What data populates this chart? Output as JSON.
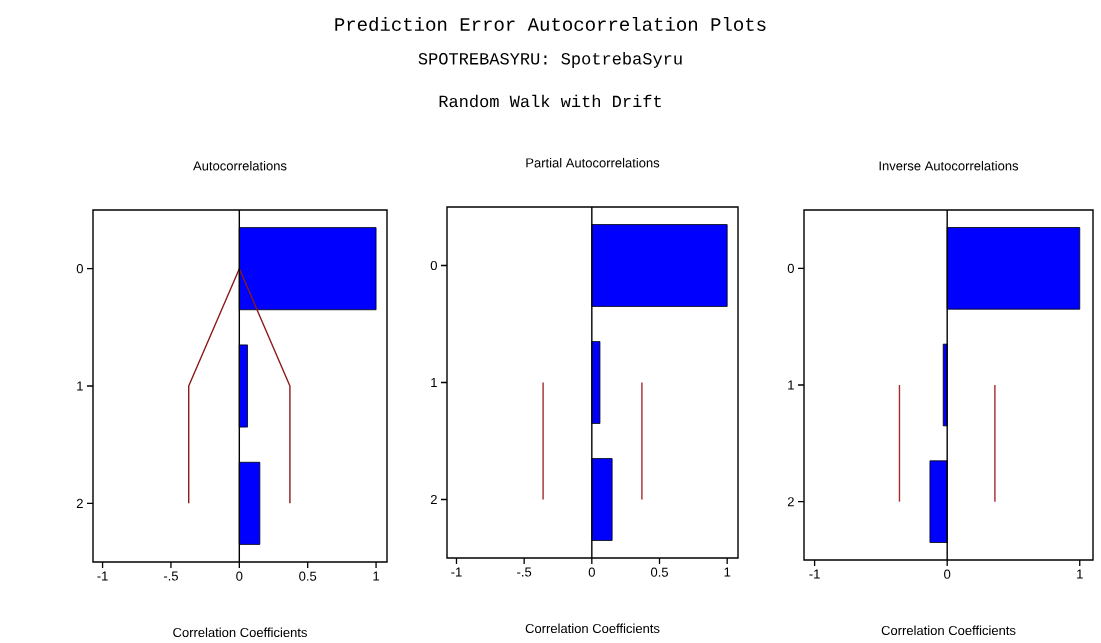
{
  "chart_data": [
    {
      "type": "other",
      "title": "Prediction Error Autocorrelation Plots",
      "subtitle": "SPOTREBASYRU: SpotrebaSyru",
      "annotations": [
        "Random Walk with Drift"
      ]
    },
    {
      "type": "bar",
      "orientation": "horizontal",
      "title": "Autocorrelations",
      "xlabel": "Correlation Coefficients",
      "categories": [
        "0",
        "1",
        "2"
      ],
      "xlim": [
        -1.07,
        1.08
      ],
      "xticks": [
        -1,
        {
          "value": -0.5,
          "label": "-.5"
        },
        0,
        0.5,
        1
      ],
      "series": [
        {
          "type": "bar",
          "color": "#0000ff",
          "values": [
            1.0,
            0.06,
            0.15
          ]
        },
        {
          "type": "line",
          "color": "#8b1a1a",
          "values": [
            0,
            -0.37,
            -0.37
          ]
        },
        {
          "type": "line",
          "color": "#8b1a1a",
          "values": [
            0,
            0.37,
            0.37
          ]
        }
      ],
      "ref_lines": [
        {
          "axis": "x",
          "value": 0,
          "color": "#000000"
        }
      ]
    },
    {
      "type": "bar",
      "orientation": "horizontal",
      "title": "Partial Autocorrelations",
      "xlabel": "Correlation Coefficients",
      "categories": [
        "0",
        "1",
        "2"
      ],
      "xlim": [
        -1.07,
        1.08
      ],
      "xticks": [
        -1,
        {
          "value": -0.5,
          "label": "-.5"
        },
        0,
        0.5,
        1
      ],
      "series": [
        {
          "type": "bar",
          "color": "#0000ff",
          "values": [
            1.0,
            0.06,
            0.15
          ]
        },
        {
          "type": "line",
          "color": "#a52a2a",
          "values": [
            null,
            -0.36,
            -0.36
          ]
        },
        {
          "type": "line",
          "color": "#a52a2a",
          "values": [
            null,
            0.37,
            0.37
          ]
        }
      ],
      "ref_lines": [
        {
          "axis": "x",
          "value": 0,
          "color": "#000000"
        }
      ]
    },
    {
      "type": "bar",
      "orientation": "horizontal",
      "title": "Inverse Autocorrelations",
      "xlabel": "Correlation Coefficients",
      "categories": [
        "0",
        "1",
        "2"
      ],
      "xlim": [
        -1.08,
        1.1
      ],
      "xticks": [
        -1,
        0,
        1
      ],
      "series": [
        {
          "type": "bar",
          "color": "#0000ff",
          "values": [
            1.0,
            -0.03,
            -0.13
          ]
        },
        {
          "type": "line",
          "color": "#a52a2a",
          "values": [
            null,
            -0.36,
            -0.36
          ]
        },
        {
          "type": "line",
          "color": "#a52a2a",
          "values": [
            null,
            0.36,
            0.36
          ]
        }
      ],
      "ref_lines": [
        {
          "axis": "x",
          "value": 0,
          "color": "#000000"
        }
      ]
    }
  ]
}
